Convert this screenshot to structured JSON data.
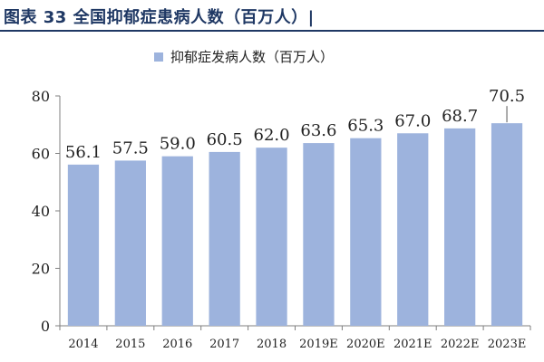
{
  "figure_title": "图表 33 全国抑郁症患病人数（百万人）|",
  "chart_data": {
    "type": "bar",
    "title": "",
    "xlabel": "",
    "ylabel": "",
    "categories": [
      "2014",
      "2015",
      "2016",
      "2017",
      "2018",
      "2019E",
      "2020E",
      "2021E",
      "2022E",
      "2023E"
    ],
    "series": [
      {
        "name": "抑郁症发病人数（百万人）",
        "values": [
          56.1,
          57.5,
          59.0,
          60.5,
          62.0,
          63.6,
          65.3,
          67.0,
          68.7,
          70.5
        ],
        "labels": [
          "56.1",
          "57.5",
          "59.0",
          "60.5",
          "62.0",
          "63.6",
          "65.3",
          "67.0",
          "68.7",
          "70.5"
        ],
        "color": "#9db3dd"
      }
    ],
    "ylim": [
      0,
      80
    ],
    "yticks": [
      0,
      20,
      40,
      60,
      80
    ],
    "grid": false,
    "legend_position": "top-center"
  }
}
